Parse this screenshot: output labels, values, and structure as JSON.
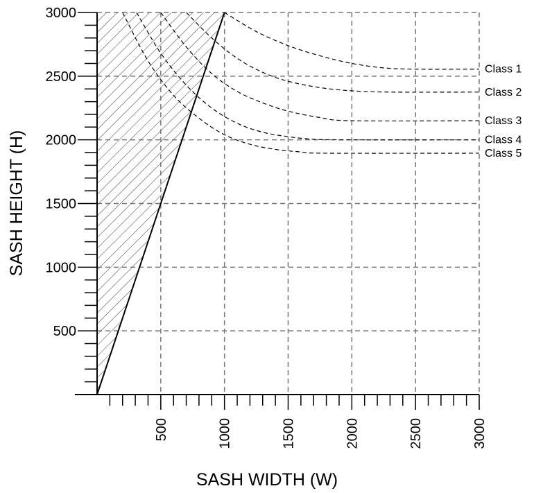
{
  "chart_data": {
    "type": "line",
    "title": "",
    "xlabel": "SASH WIDTH (W)",
    "ylabel": "SASH HEIGHT (H)",
    "xlim": [
      0,
      3000
    ],
    "ylim": [
      0,
      3000
    ],
    "x_ticks": [
      500,
      1000,
      1500,
      2000,
      2500,
      3000
    ],
    "x_tick_labels": [
      "500",
      "1000",
      "1500",
      "2000",
      "2500",
      "3000"
    ],
    "y_ticks": [
      500,
      1000,
      1500,
      2000,
      2500,
      3000
    ],
    "y_tick_labels": [
      "500",
      "1000",
      "1500",
      "2000",
      "2500",
      "3000"
    ],
    "minor_tick_step": 100,
    "grid": true,
    "boundary_line": {
      "x": [
        0,
        1000
      ],
      "y": [
        0,
        3000
      ]
    },
    "hatched_region": "left of boundary line (W < H/3)",
    "series": [
      {
        "name": "Class 1",
        "x": [
          1000,
          1250,
          1500,
          1750,
          2000,
          2250,
          2500,
          3000
        ],
        "y": [
          3000,
          2850,
          2740,
          2660,
          2600,
          2565,
          2555,
          2555
        ]
      },
      {
        "name": "Class 2",
        "x": [
          700,
          900,
          1100,
          1300,
          1500,
          1750,
          2000,
          2300,
          3000
        ],
        "y": [
          3000,
          2800,
          2640,
          2530,
          2460,
          2410,
          2385,
          2375,
          2375
        ]
      },
      {
        "name": "Class 3",
        "x": [
          500,
          700,
          900,
          1100,
          1300,
          1500,
          1750,
          2000,
          3000
        ],
        "y": [
          3000,
          2730,
          2520,
          2380,
          2290,
          2225,
          2175,
          2150,
          2150
        ]
      },
      {
        "name": "Class 4",
        "x": [
          310,
          500,
          700,
          900,
          1100,
          1300,
          1500,
          1700,
          2000,
          3000
        ],
        "y": [
          3000,
          2680,
          2430,
          2250,
          2130,
          2060,
          2025,
          2005,
          2000,
          2000
        ]
      },
      {
        "name": "Class 5",
        "x": [
          200,
          400,
          600,
          800,
          1000,
          1200,
          1400,
          1600,
          1800,
          3000
        ],
        "y": [
          3000,
          2620,
          2350,
          2170,
          2040,
          1965,
          1925,
          1905,
          1895,
          1895
        ]
      }
    ]
  }
}
